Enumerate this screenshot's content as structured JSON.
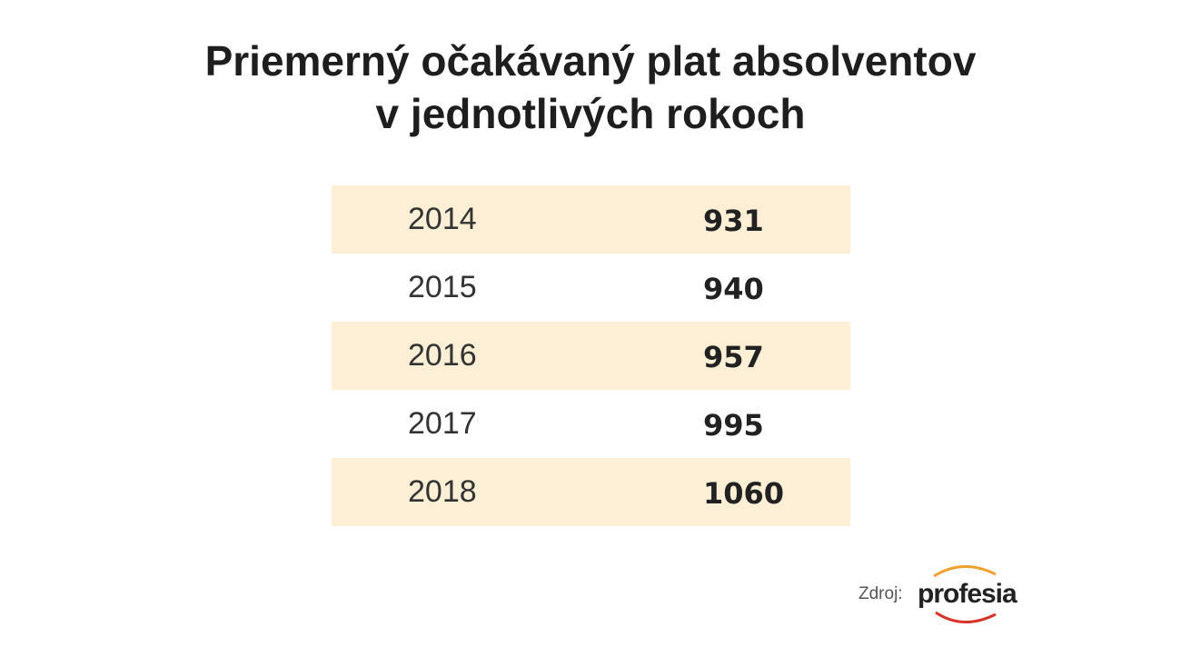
{
  "header": {
    "title_lines": [
      "Priemerný očakávaný plat absolventov",
      "v jednotlivých rokoch"
    ]
  },
  "table": {
    "rows": [
      [
        2014,
        931
      ],
      [
        2015,
        940
      ],
      [
        2016,
        957
      ],
      [
        2017,
        995
      ],
      [
        2018,
        1060
      ]
    ]
  },
  "source": {
    "label": "Zdroj:",
    "logo": "profesia"
  }
}
